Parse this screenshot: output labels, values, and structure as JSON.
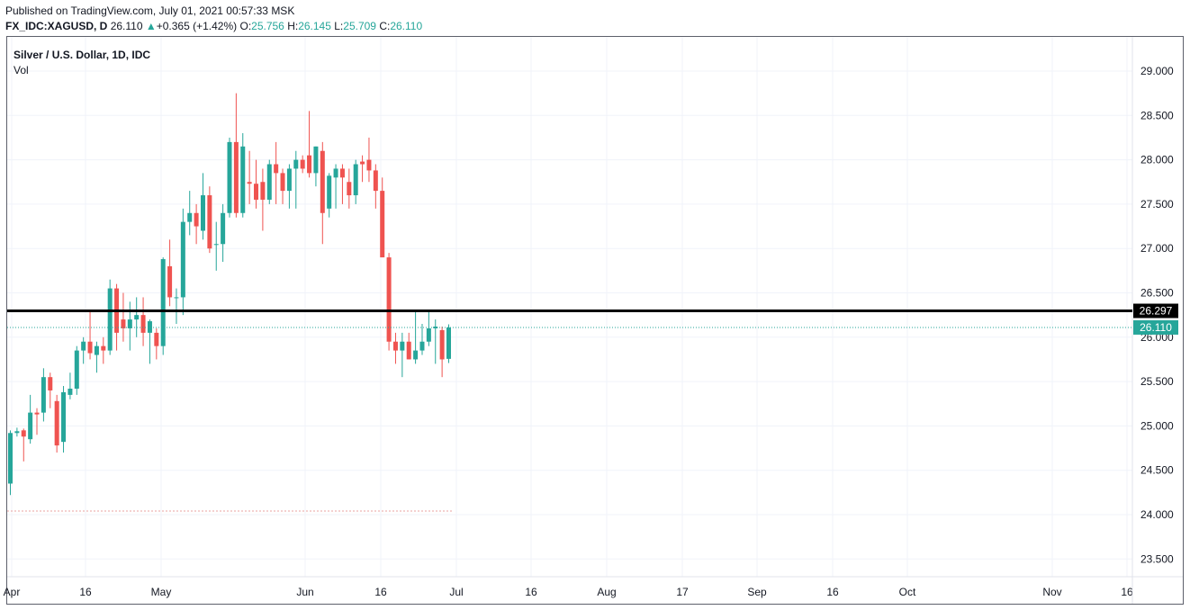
{
  "header": {
    "published": "Published on TradingView.com, July 01, 2021 00:57:33 MSK",
    "symbol": "FX_IDC:XAGUSD, D",
    "price": "26.110",
    "change_arrow": "▲",
    "change": "+0.365 (+1.42%)",
    "open_label": "O:",
    "open": "25.756",
    "high_label": "H:",
    "high": "26.145",
    "low_label": "L:",
    "low": "25.709",
    "close_label": "C:",
    "close": "26.110"
  },
  "legend": {
    "title": "Silver / U.S. Dollar, 1D, IDC",
    "vol": "Vol"
  },
  "colors": {
    "up": "#26a69a",
    "down": "#ef5350",
    "grid": "#f0f3fa",
    "hline": "#000000",
    "axis_border": "#5d606b"
  },
  "chart_data": {
    "type": "candlestick",
    "ylim": [
      23.35,
      29.25
    ],
    "y_ticks": [
      "29.000",
      "28.500",
      "28.000",
      "27.500",
      "27.000",
      "26.500",
      "26.000",
      "25.500",
      "25.000",
      "24.500",
      "24.000",
      "23.500"
    ],
    "x_ticks": [
      "Apr",
      "16",
      "May",
      "Jun",
      "16",
      "Jul",
      "16",
      "Aug",
      "17",
      "Sep",
      "16",
      "Oct",
      "Nov",
      "16"
    ],
    "horizontal_line": {
      "value": 26.297,
      "label": "26.297"
    },
    "last_price": {
      "value": 26.11,
      "label": "26.110"
    },
    "grid": true,
    "candles": [
      {
        "date": "2021-04-01",
        "o": 24.35,
        "h": 24.95,
        "l": 24.22,
        "c": 24.92
      },
      {
        "date": "2021-04-02",
        "o": 24.92,
        "h": 24.98,
        "l": 24.88,
        "c": 24.94
      },
      {
        "date": "2021-04-05",
        "o": 24.95,
        "h": 24.97,
        "l": 24.6,
        "c": 24.88
      },
      {
        "date": "2021-04-06",
        "o": 24.85,
        "h": 25.35,
        "l": 24.8,
        "c": 25.15
      },
      {
        "date": "2021-04-07",
        "o": 25.15,
        "h": 25.2,
        "l": 24.9,
        "c": 25.13
      },
      {
        "date": "2021-04-08",
        "o": 25.15,
        "h": 25.65,
        "l": 25.05,
        "c": 25.55
      },
      {
        "date": "2021-04-09",
        "o": 25.55,
        "h": 25.6,
        "l": 25.2,
        "c": 25.4
      },
      {
        "date": "2021-04-12",
        "o": 25.28,
        "h": 25.35,
        "l": 24.7,
        "c": 24.78
      },
      {
        "date": "2021-04-13",
        "o": 24.82,
        "h": 25.45,
        "l": 24.7,
        "c": 25.38
      },
      {
        "date": "2021-04-14",
        "o": 25.35,
        "h": 25.6,
        "l": 25.3,
        "c": 25.42
      },
      {
        "date": "2021-04-15",
        "o": 25.42,
        "h": 25.9,
        "l": 25.35,
        "c": 25.85
      },
      {
        "date": "2021-04-16",
        "o": 25.85,
        "h": 26.0,
        "l": 25.7,
        "c": 25.95
      },
      {
        "date": "2021-04-19",
        "o": 25.95,
        "h": 26.3,
        "l": 25.75,
        "c": 25.82
      },
      {
        "date": "2021-04-20",
        "o": 25.8,
        "h": 25.95,
        "l": 25.6,
        "c": 25.9
      },
      {
        "date": "2021-04-21",
        "o": 25.9,
        "h": 26.0,
        "l": 25.7,
        "c": 25.85
      },
      {
        "date": "2021-04-22",
        "o": 25.85,
        "h": 26.65,
        "l": 25.8,
        "c": 26.55
      },
      {
        "date": "2021-04-23",
        "o": 26.55,
        "h": 26.6,
        "l": 25.85,
        "c": 26.05
      },
      {
        "date": "2021-04-26",
        "o": 26.2,
        "h": 26.5,
        "l": 25.95,
        "c": 26.1
      },
      {
        "date": "2021-04-27",
        "o": 26.1,
        "h": 26.4,
        "l": 25.85,
        "c": 26.2
      },
      {
        "date": "2021-04-28",
        "o": 26.2,
        "h": 26.45,
        "l": 26.0,
        "c": 26.25
      },
      {
        "date": "2021-04-29",
        "o": 26.25,
        "h": 26.45,
        "l": 25.9,
        "c": 26.05
      },
      {
        "date": "2021-04-30",
        "o": 26.05,
        "h": 26.2,
        "l": 25.7,
        "c": 26.18
      },
      {
        "date": "2021-05-03",
        "o": 26.05,
        "h": 26.1,
        "l": 25.75,
        "c": 25.9
      },
      {
        "date": "2021-05-04",
        "o": 25.9,
        "h": 26.9,
        "l": 25.8,
        "c": 26.88
      },
      {
        "date": "2021-05-05",
        "o": 26.8,
        "h": 27.1,
        "l": 26.35,
        "c": 26.45
      },
      {
        "date": "2021-05-06",
        "o": 26.45,
        "h": 26.55,
        "l": 26.15,
        "c": 26.45
      },
      {
        "date": "2021-05-07",
        "o": 26.45,
        "h": 27.45,
        "l": 26.25,
        "c": 27.3
      },
      {
        "date": "2021-05-10",
        "o": 27.3,
        "h": 27.65,
        "l": 27.15,
        "c": 27.4
      },
      {
        "date": "2021-05-11",
        "o": 27.4,
        "h": 27.5,
        "l": 27.05,
        "c": 27.25
      },
      {
        "date": "2021-05-12",
        "o": 27.2,
        "h": 27.85,
        "l": 27.1,
        "c": 27.6
      },
      {
        "date": "2021-05-13",
        "o": 27.6,
        "h": 27.7,
        "l": 26.95,
        "c": 27.0
      },
      {
        "date": "2021-05-14",
        "o": 27.05,
        "h": 27.3,
        "l": 26.75,
        "c": 27.05
      },
      {
        "date": "2021-05-17",
        "o": 27.05,
        "h": 27.5,
        "l": 26.85,
        "c": 27.4
      },
      {
        "date": "2021-05-18",
        "o": 27.4,
        "h": 28.25,
        "l": 27.35,
        "c": 28.2
      },
      {
        "date": "2021-05-19",
        "o": 28.2,
        "h": 28.75,
        "l": 27.35,
        "c": 27.4
      },
      {
        "date": "2021-05-20",
        "o": 27.4,
        "h": 28.3,
        "l": 27.35,
        "c": 28.15
      },
      {
        "date": "2021-05-21",
        "o": 27.75,
        "h": 28.1,
        "l": 27.5,
        "c": 27.73
      },
      {
        "date": "2021-05-24",
        "o": 27.73,
        "h": 28.0,
        "l": 27.45,
        "c": 27.55
      },
      {
        "date": "2021-05-25",
        "o": 27.75,
        "h": 27.9,
        "l": 27.2,
        "c": 27.55
      },
      {
        "date": "2021-05-26",
        "o": 27.55,
        "h": 28.0,
        "l": 27.5,
        "c": 27.95
      },
      {
        "date": "2021-05-27",
        "o": 27.95,
        "h": 28.2,
        "l": 27.5,
        "c": 27.85
      },
      {
        "date": "2021-05-28",
        "o": 27.85,
        "h": 27.9,
        "l": 27.5,
        "c": 27.65
      },
      {
        "date": "2021-05-31",
        "o": 27.65,
        "h": 27.95,
        "l": 27.45,
        "c": 27.9
      },
      {
        "date": "2021-06-01",
        "o": 27.9,
        "h": 28.1,
        "l": 27.45,
        "c": 28.0
      },
      {
        "date": "2021-06-02",
        "o": 28.0,
        "h": 28.05,
        "l": 27.85,
        "c": 27.9
      },
      {
        "date": "2021-06-03",
        "o": 28.05,
        "h": 28.55,
        "l": 27.8,
        "c": 27.85
      },
      {
        "date": "2021-06-04",
        "o": 27.85,
        "h": 28.15,
        "l": 27.7,
        "c": 28.15
      },
      {
        "date": "2021-06-07",
        "o": 28.1,
        "h": 28.2,
        "l": 27.05,
        "c": 27.4
      },
      {
        "date": "2021-06-08",
        "o": 27.45,
        "h": 27.85,
        "l": 27.35,
        "c": 27.82
      },
      {
        "date": "2021-06-09",
        "o": 27.8,
        "h": 27.95,
        "l": 27.45,
        "c": 27.9
      },
      {
        "date": "2021-06-10",
        "o": 27.9,
        "h": 27.95,
        "l": 27.5,
        "c": 27.8
      },
      {
        "date": "2021-06-11",
        "o": 27.75,
        "h": 27.9,
        "l": 27.45,
        "c": 27.6
      },
      {
        "date": "2021-06-14",
        "o": 27.6,
        "h": 28.0,
        "l": 27.5,
        "c": 27.95
      },
      {
        "date": "2021-06-15",
        "o": 27.98,
        "h": 28.05,
        "l": 27.75,
        "c": 27.95
      },
      {
        "date": "2021-06-16",
        "o": 28.0,
        "h": 28.25,
        "l": 27.75,
        "c": 27.88
      },
      {
        "date": "2021-06-17",
        "o": 27.88,
        "h": 27.95,
        "l": 27.45,
        "c": 27.65
      },
      {
        "date": "2021-06-18",
        "o": 27.65,
        "h": 27.8,
        "l": 26.9,
        "c": 26.9
      },
      {
        "date": "2021-06-21",
        "o": 26.9,
        "h": 26.95,
        "l": 25.85,
        "c": 25.95
      },
      {
        "date": "2021-06-22",
        "o": 25.95,
        "h": 26.05,
        "l": 25.7,
        "c": 25.85
      },
      {
        "date": "2021-06-23",
        "o": 25.85,
        "h": 26.05,
        "l": 25.55,
        "c": 25.95
      },
      {
        "date": "2021-06-24",
        "o": 25.95,
        "h": 26.05,
        "l": 25.75,
        "c": 25.75
      },
      {
        "date": "2021-06-25",
        "o": 25.75,
        "h": 26.3,
        "l": 25.7,
        "c": 25.85
      },
      {
        "date": "2021-06-28",
        "o": 25.85,
        "h": 26.15,
        "l": 25.8,
        "c": 25.95
      },
      {
        "date": "2021-06-29",
        "o": 25.95,
        "h": 26.3,
        "l": 25.9,
        "c": 26.1
      },
      {
        "date": "2021-06-30",
        "o": 26.1,
        "h": 26.2,
        "l": 25.7,
        "c": 26.12
      },
      {
        "date": "2021-06-30b",
        "o": 26.08,
        "h": 26.12,
        "l": 25.55,
        "c": 25.75
      },
      {
        "date": "2021-07-01",
        "o": 25.756,
        "h": 26.145,
        "l": 25.709,
        "c": 26.11
      }
    ]
  }
}
